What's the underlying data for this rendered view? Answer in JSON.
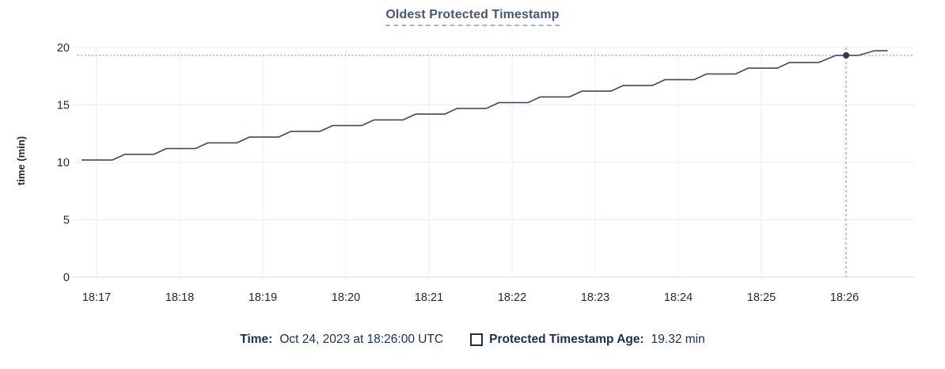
{
  "title": "Oldest Protected Timestamp",
  "colors": {
    "title_text": "#475872",
    "tick_text": "#26292e",
    "grid": "#ededed",
    "axis_baseline": "#d8d8d8",
    "series_line": "#3e4a5f",
    "highlight_point": "#2f3b52",
    "crosshair_horizontal": "#8fa8b8",
    "crosshair_vertical": "#9aa6b2",
    "legend_text": "#1b2f4e"
  },
  "chart_data": {
    "type": "line",
    "step_style": true,
    "title": "Oldest Protected Timestamp",
    "xlabel": "",
    "ylabel": "time (min)",
    "ylim": [
      0,
      20
    ],
    "yticks": [
      0,
      5,
      10,
      15,
      20
    ],
    "x_tick_labels": [
      "18:17",
      "18:18",
      "18:19",
      "18:20",
      "18:21",
      "18:22",
      "18:23",
      "18:24",
      "18:25",
      "18:26"
    ],
    "grid": true,
    "legend_position": "bottom",
    "series": [
      {
        "name": "Protected Timestamp Age",
        "unit": "min",
        "points_note": "x = minutes after 18:17, y = time (min)",
        "points": [
          [
            -0.18,
            10.2
          ],
          [
            0.19,
            10.2
          ],
          [
            0.34,
            10.7
          ],
          [
            0.69,
            10.7
          ],
          [
            0.84,
            11.2
          ],
          [
            1.19,
            11.2
          ],
          [
            1.34,
            11.7
          ],
          [
            1.69,
            11.7
          ],
          [
            1.84,
            12.2
          ],
          [
            2.19,
            12.2
          ],
          [
            2.34,
            12.7
          ],
          [
            2.69,
            12.7
          ],
          [
            2.84,
            13.2
          ],
          [
            3.19,
            13.2
          ],
          [
            3.34,
            13.7
          ],
          [
            3.69,
            13.7
          ],
          [
            3.84,
            14.2
          ],
          [
            4.19,
            14.2
          ],
          [
            4.34,
            14.7
          ],
          [
            4.69,
            14.7
          ],
          [
            4.84,
            15.2
          ],
          [
            5.19,
            15.2
          ],
          [
            5.34,
            15.7
          ],
          [
            5.69,
            15.7
          ],
          [
            5.84,
            16.2
          ],
          [
            6.19,
            16.2
          ],
          [
            6.34,
            16.7
          ],
          [
            6.69,
            16.7
          ],
          [
            6.84,
            17.2
          ],
          [
            7.19,
            17.2
          ],
          [
            7.34,
            17.7
          ],
          [
            7.69,
            17.7
          ],
          [
            7.84,
            18.2
          ],
          [
            8.19,
            18.2
          ],
          [
            8.34,
            18.7
          ],
          [
            8.69,
            18.7
          ],
          [
            8.9,
            19.32
          ],
          [
            9.17,
            19.32
          ],
          [
            9.36,
            19.72
          ],
          [
            9.52,
            19.72
          ]
        ]
      }
    ],
    "highlight": {
      "x_offset_min": 9.02,
      "value": 19.32,
      "time_label": "Oct 24, 2023 at 18:26:00 UTC"
    }
  },
  "tooltip": {
    "time_label": "Time:",
    "time_value": "Oct 24, 2023 at 18:26:00 UTC",
    "series_label": "Protected Timestamp Age:",
    "series_value": "19.32 min"
  }
}
